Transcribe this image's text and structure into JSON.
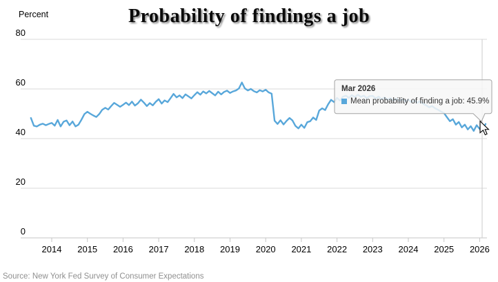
{
  "chart": {
    "title": "Probability of findings a job",
    "y_axis_title": "Percent",
    "source": "Source: New York Fed Survey of Consumer Expectations"
  },
  "tooltip": {
    "title": "Mar 2026",
    "series_label": "Mean probability of finding a job",
    "value": "45.9%",
    "text": "Mean probability of finding a job: 45.9%"
  },
  "colors": {
    "series": "#58A7DA",
    "gridline": "#d9d9d9",
    "axis_line": "#c6c6c6",
    "crosshair": "#cccccc",
    "tooltip_bg": "rgba(247,247,247,0.85)",
    "tooltip_border": "#a3a3a3"
  },
  "chart_data": {
    "type": "line",
    "title": "Probability of findings a job",
    "ylabel": "Percent",
    "ylim": [
      0,
      80
    ],
    "y_ticks": [
      0,
      20,
      40,
      60,
      80
    ],
    "x_ticks": [
      2014,
      2015,
      2016,
      2017,
      2018,
      2019,
      2020,
      2021,
      2022,
      2023,
      2024,
      2025,
      2026
    ],
    "grid": "horizontal",
    "legend_position": "none",
    "hover_point": {
      "label": "Mar 2026",
      "value": 45.9
    },
    "series": [
      {
        "name": "Mean probability of finding a job",
        "start": "2013-06",
        "frequency": "monthly",
        "values": [
          48.3,
          45.2,
          44.9,
          45.6,
          46.0,
          45.4,
          45.9,
          46.3,
          45.2,
          47.5,
          44.9,
          46.8,
          47.3,
          45.4,
          46.9,
          44.9,
          45.6,
          47.6,
          49.9,
          50.8,
          50.0,
          49.3,
          48.7,
          49.9,
          51.6,
          52.4,
          51.7,
          53.1,
          54.4,
          53.6,
          52.8,
          53.6,
          54.5,
          53.5,
          54.9,
          53.3,
          54.2,
          55.7,
          54.5,
          53.1,
          54.3,
          53.4,
          54.8,
          55.9,
          54.1,
          55.4,
          54.7,
          56.3,
          58.0,
          56.6,
          57.4,
          56.3,
          57.8,
          57.0,
          56.2,
          57.5,
          58.7,
          57.7,
          59.0,
          58.2,
          59.2,
          58.3,
          57.4,
          58.9,
          57.8,
          58.8,
          59.3,
          58.4,
          59.0,
          59.4,
          60.2,
          62.6,
          60.2,
          59.4,
          60.0,
          59.1,
          58.6,
          59.5,
          59.0,
          59.7,
          58.6,
          58.1,
          47.2,
          45.9,
          47.4,
          45.7,
          47.1,
          48.3,
          47.3,
          45.1,
          44.1,
          45.6,
          44.3,
          46.6,
          47.0,
          48.5,
          47.5,
          51.3,
          52.2,
          51.5,
          53.8,
          55.6,
          54.7,
          56.4,
          55.3,
          56.9,
          57.3,
          56.4,
          57.5,
          56.7,
          57.7,
          56.8,
          57.3,
          56.3,
          57.1,
          57.2,
          56.2,
          56.9,
          55.8,
          56.6,
          55.6,
          56.3,
          55.3,
          56.1,
          55.1,
          55.9,
          54.9,
          55.7,
          54.7,
          55.4,
          54.4,
          55.1,
          54.0,
          53.4,
          52.6,
          53.1,
          52.2,
          51.6,
          50.9,
          50.3,
          48.6,
          47.0,
          47.8,
          45.6,
          46.7,
          44.5,
          45.6,
          43.7,
          45.0,
          43.1,
          45.4,
          43.9,
          43.3,
          45.9
        ]
      }
    ]
  }
}
